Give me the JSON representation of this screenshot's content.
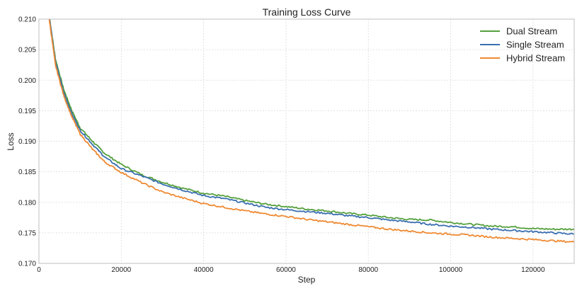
{
  "chart_data": {
    "type": "line",
    "title": "Training Loss Curve",
    "xlabel": "Step",
    "ylabel": "Loss",
    "xlim": [
      0,
      130000
    ],
    "ylim": [
      0.17,
      0.21
    ],
    "xticks": [
      0,
      20000,
      40000,
      60000,
      80000,
      100000,
      120000
    ],
    "yticks": [
      0.17,
      0.175,
      0.18,
      0.185,
      0.19,
      0.195,
      0.2,
      0.205,
      0.21
    ],
    "grid": true,
    "legend_position": "top-right",
    "series": [
      {
        "name": "Dual Stream",
        "color": "#55a03c",
        "x": [
          2500,
          4000,
          6000,
          8000,
          10000,
          13000,
          16000,
          20000,
          25000,
          30000,
          35000,
          40000,
          45000,
          50000,
          55000,
          60000,
          65000,
          70000,
          75000,
          80000,
          85000,
          90000,
          95000,
          100000,
          105000,
          110000,
          115000,
          120000,
          125000,
          130000
        ],
        "y": [
          0.2105,
          0.2035,
          0.1985,
          0.195,
          0.1922,
          0.19,
          0.188,
          0.1862,
          0.1845,
          0.1833,
          0.1823,
          0.1815,
          0.181,
          0.1803,
          0.1797,
          0.1793,
          0.1789,
          0.1786,
          0.1782,
          0.1779,
          0.1775,
          0.1772,
          0.1771,
          0.1767,
          0.1764,
          0.1761,
          0.176,
          0.1757,
          0.1756,
          0.1756
        ]
      },
      {
        "name": "Single Stream",
        "color": "#3a6fb0",
        "x": [
          2500,
          4000,
          6000,
          8000,
          10000,
          13000,
          16000,
          20000,
          25000,
          30000,
          35000,
          40000,
          45000,
          50000,
          55000,
          60000,
          65000,
          70000,
          75000,
          80000,
          85000,
          90000,
          95000,
          100000,
          105000,
          110000,
          115000,
          120000,
          125000,
          130000
        ],
        "y": [
          0.2105,
          0.203,
          0.198,
          0.1945,
          0.1918,
          0.1895,
          0.1874,
          0.1855,
          0.1843,
          0.183,
          0.182,
          0.1811,
          0.1806,
          0.1799,
          0.1792,
          0.1788,
          0.1785,
          0.1782,
          0.1778,
          0.1775,
          0.1771,
          0.1768,
          0.1764,
          0.1761,
          0.1759,
          0.1756,
          0.1754,
          0.1752,
          0.175,
          0.1748
        ]
      },
      {
        "name": "Hybrid Stream",
        "color": "#ef8a33",
        "x": [
          2500,
          4000,
          6000,
          8000,
          10000,
          13000,
          16000,
          20000,
          25000,
          30000,
          35000,
          40000,
          45000,
          50000,
          55000,
          60000,
          65000,
          70000,
          75000,
          80000,
          85000,
          90000,
          95000,
          100000,
          105000,
          110000,
          115000,
          120000,
          125000,
          130000
        ],
        "y": [
          0.21,
          0.2025,
          0.1975,
          0.194,
          0.1912,
          0.1887,
          0.1866,
          0.1849,
          0.1832,
          0.1817,
          0.1807,
          0.1798,
          0.1792,
          0.1786,
          0.1781,
          0.1777,
          0.1772,
          0.1768,
          0.1764,
          0.176,
          0.1756,
          0.1753,
          0.175,
          0.1748,
          0.1746,
          0.1743,
          0.1741,
          0.1739,
          0.1737,
          0.1735
        ]
      }
    ]
  }
}
